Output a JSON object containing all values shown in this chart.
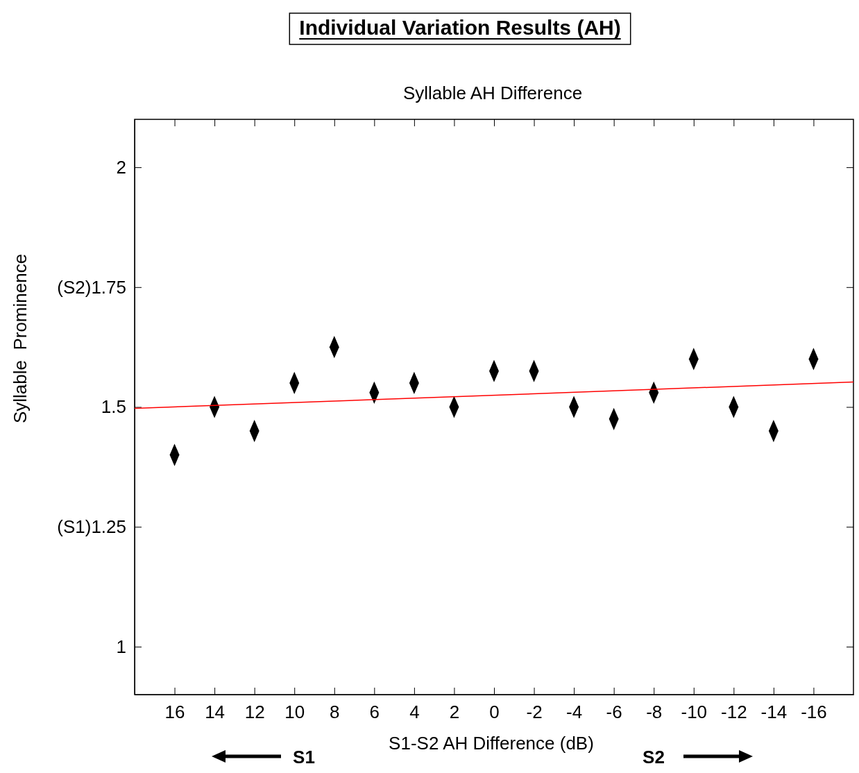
{
  "chart_data": {
    "type": "scatter",
    "title": "Individual Variation Results (AH)",
    "subtitle": "Syllable AH Difference",
    "xlabel": "S1-S2 AH Difference (dB)",
    "ylabel": "Syllable  Prominence",
    "x": [
      16,
      14,
      12,
      10,
      8,
      6,
      4,
      2,
      0,
      -2,
      -4,
      -6,
      -8,
      -10,
      -12,
      -14,
      -16
    ],
    "series": [
      {
        "color": "#000000",
        "marker": "diamond",
        "values": [
          1.4,
          1.5,
          1.45,
          1.55,
          1.625,
          1.53,
          1.55,
          1.5,
          1.575,
          1.575,
          1.5,
          1.475,
          1.53,
          1.6,
          1.5,
          1.45,
          1.6
        ]
      },
      {
        "type": "line",
        "color": "#ff0000",
        "x": [
          18,
          -18
        ],
        "values": [
          1.497,
          1.552
        ]
      }
    ],
    "xlim": [
      18,
      -18
    ],
    "xticks": [
      16,
      14,
      12,
      10,
      8,
      6,
      4,
      2,
      0,
      -2,
      -4,
      -6,
      -8,
      -10,
      -12,
      -14,
      -16
    ],
    "ylim": [
      0.9,
      2.1
    ],
    "yticks": [
      1,
      {
        "value": 1.25,
        "label": "(S1)1.25"
      },
      1.5,
      {
        "value": 1.75,
        "label": "(S2)1.75"
      },
      2
    ],
    "annotations": [
      "S1",
      "S2"
    ],
    "grid": false
  }
}
